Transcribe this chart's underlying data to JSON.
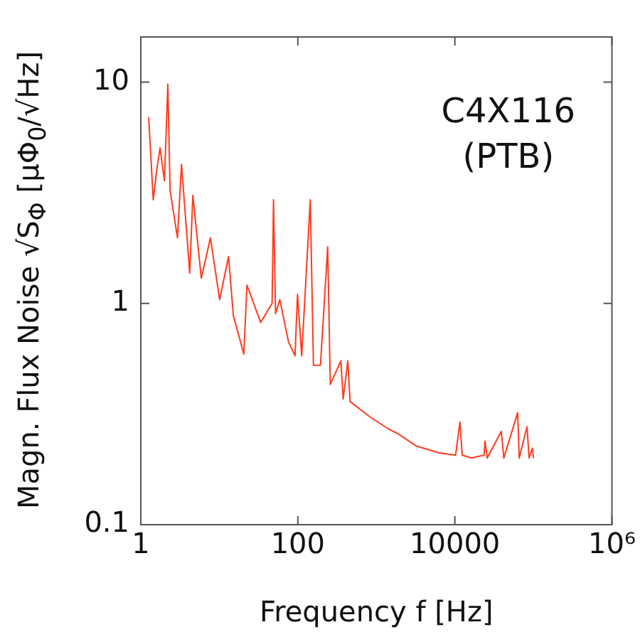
{
  "chart_data": {
    "type": "line",
    "xlabel": "Frequency f [Hz]",
    "ylabel": "Magn. Flux Noise  √S$_{Φ}$ [μΦ$_{0}$/√Hz]",
    "annotations": [
      "C4X116",
      "(PTB)"
    ],
    "log": "xy",
    "xlim": [
      1,
      1000000
    ],
    "xticks": [
      1,
      100,
      10000,
      {
        "value": 1000000,
        "label": "10⁶"
      }
    ],
    "ylim": [
      0.1,
      16
    ],
    "yticks": [
      0.1,
      1,
      10
    ],
    "marker": "none",
    "line_style": "solid",
    "series": [
      {
        "color": "#ff3b1f",
        "x": [
          1.26,
          1.44,
          1.6,
          1.76,
          2.0,
          2.21,
          2.36,
          2.93,
          3.3,
          4.2,
          4.6,
          5.9,
          7.7,
          10.1,
          13.1,
          15.1,
          20.5,
          22.5,
          33.6,
          47,
          49,
          52,
          59,
          76,
          92,
          99,
          112,
          144,
          158,
          194,
          240,
          259,
          353,
          378,
          433,
          463,
          850,
          1450,
          1900,
          3200,
          6300,
          10200,
          11600,
          12400,
          16300,
          23500,
          24200,
          25800,
          39000,
          42000,
          63000,
          66000,
          83000,
          88000,
          97000,
          100000
        ],
        "values": [
          6.95,
          2.94,
          4.04,
          5.05,
          3.58,
          9.8,
          3.24,
          1.98,
          4.25,
          1.37,
          3.08,
          1.3,
          1.98,
          1.04,
          1.63,
          0.88,
          0.59,
          1.21,
          0.82,
          1.0,
          2.94,
          0.9,
          1.04,
          0.67,
          0.58,
          1.1,
          0.58,
          2.94,
          0.525,
          0.525,
          1.8,
          0.43,
          0.55,
          0.37,
          0.55,
          0.36,
          0.305,
          0.27,
          0.257,
          0.227,
          0.211,
          0.206,
          0.291,
          0.206,
          0.2,
          0.206,
          0.239,
          0.2,
          0.264,
          0.2,
          0.321,
          0.2,
          0.277,
          0.2,
          0.222,
          0.2
        ]
      }
    ]
  }
}
